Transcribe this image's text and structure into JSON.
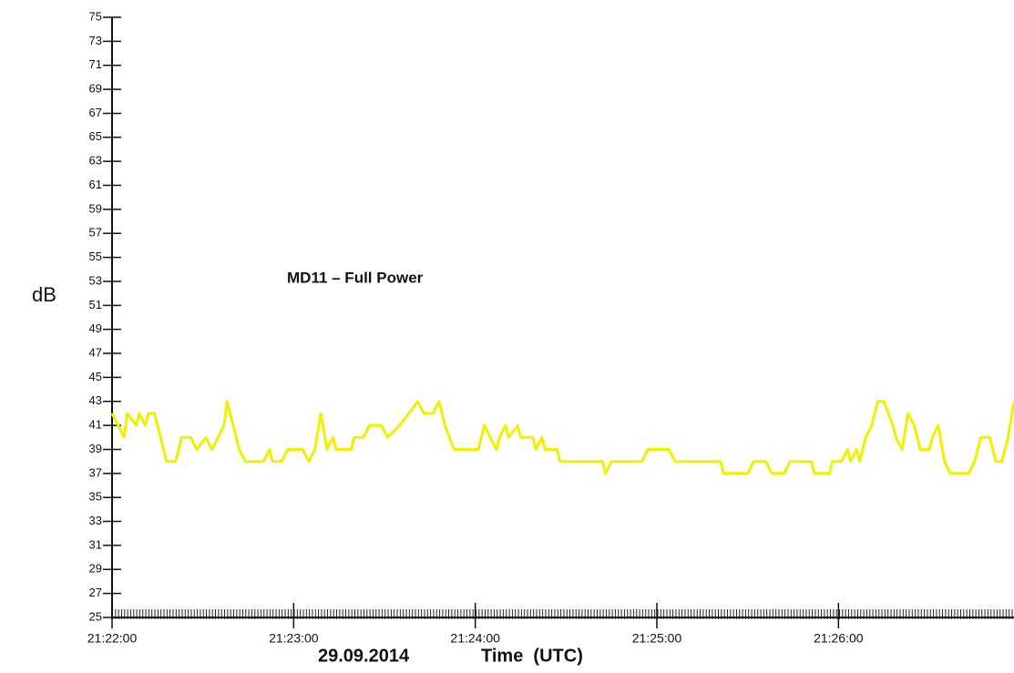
{
  "chart_data": {
    "type": "line",
    "title": "MD11 – Full Power",
    "ylabel": "dB",
    "date": "29.09.2014",
    "xlabel": "Time  (UTC)",
    "color": "#f0f000",
    "xlim": [
      "21:22:00",
      "21:26:58"
    ],
    "xticks": [
      "21:22:00",
      "21:23:00",
      "21:24:00",
      "21:25:00",
      "21:26:00"
    ],
    "ylim": [
      25,
      75
    ],
    "yticks": [
      25,
      27,
      29,
      31,
      33,
      35,
      37,
      39,
      41,
      43,
      45,
      47,
      49,
      51,
      53,
      55,
      57,
      59,
      61,
      63,
      65,
      67,
      69,
      71,
      73,
      75
    ],
    "x": [
      "21:22:00",
      "21:22:02",
      "21:22:04",
      "21:22:05",
      "21:22:08",
      "21:22:09",
      "21:22:11",
      "21:22:12",
      "21:22:14",
      "21:22:16",
      "21:22:18",
      "21:22:21",
      "21:22:23",
      "21:22:26",
      "21:22:28",
      "21:22:31",
      "21:22:33",
      "21:22:35",
      "21:22:37",
      "21:22:38",
      "21:22:40",
      "21:22:42",
      "21:22:44",
      "21:22:50",
      "21:22:52",
      "21:22:53",
      "21:22:56",
      "21:22:58",
      "21:23:03",
      "21:23:05",
      "21:23:07",
      "21:23:09",
      "21:23:11",
      "21:23:13",
      "21:23:14",
      "21:23:19",
      "21:23:20",
      "21:23:23",
      "21:23:25",
      "21:23:29",
      "21:23:31",
      "21:23:35",
      "21:23:38",
      "21:23:41",
      "21:23:43",
      "21:23:46",
      "21:23:48",
      "21:23:50",
      "21:23:53",
      "21:24:01",
      "21:24:03",
      "21:24:05",
      "21:24:07",
      "21:24:08",
      "21:24:10",
      "21:24:11",
      "21:24:14",
      "21:24:15",
      "21:24:19",
      "21:24:20",
      "21:24:22",
      "21:24:23",
      "21:24:27",
      "21:24:28",
      "21:24:42",
      "21:24:43",
      "21:24:45",
      "21:24:55",
      "21:24:57",
      "21:25:04",
      "21:25:06",
      "21:25:21",
      "21:25:22",
      "21:25:30",
      "21:25:32",
      "21:25:36",
      "21:25:38",
      "21:25:42",
      "21:25:44",
      "21:25:51",
      "21:25:52",
      "21:25:57",
      "21:25:58",
      "21:26:01",
      "21:26:03",
      "21:26:04",
      "21:26:06",
      "21:26:07",
      "21:26:09",
      "21:26:11",
      "21:26:13",
      "21:26:15",
      "21:26:18",
      "21:26:19",
      "21:26:21",
      "21:26:23",
      "21:26:25",
      "21:26:27",
      "21:26:30",
      "21:26:31",
      "21:26:33",
      "21:26:35",
      "21:26:37",
      "21:26:43",
      "21:26:45",
      "21:26:47",
      "21:26:50",
      "21:26:52",
      "21:26:54",
      "21:26:56",
      "21:26:58"
    ],
    "values": [
      42,
      41,
      40,
      42,
      41,
      42,
      41,
      42,
      42,
      40,
      38,
      38,
      40,
      40,
      39,
      40,
      39,
      40,
      41,
      43,
      41,
      39,
      38,
      38,
      39,
      38,
      38,
      39,
      39,
      38,
      39,
      42,
      39,
      40,
      39,
      39,
      40,
      40,
      41,
      41,
      40,
      41,
      42,
      43,
      42,
      42,
      43,
      41,
      39,
      39,
      41,
      40,
      39,
      40,
      41,
      40,
      41,
      40,
      40,
      39,
      40,
      39,
      39,
      38,
      38,
      37,
      38,
      38,
      39,
      39,
      38,
      38,
      37,
      37,
      38,
      38,
      37,
      37,
      38,
      38,
      37,
      37,
      38,
      38,
      39,
      38,
      39,
      38,
      40,
      41,
      43,
      43,
      41,
      40,
      39,
      42,
      41,
      39,
      39,
      40,
      41,
      38,
      37,
      37,
      38,
      40,
      40,
      38,
      38,
      40,
      43
    ]
  }
}
